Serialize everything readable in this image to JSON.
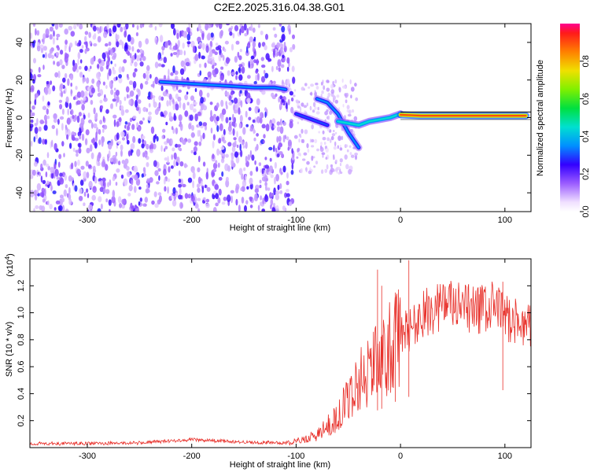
{
  "title": "C2E2.2025.316.04.38.G01",
  "colors": {
    "snr_line": "#e8302a",
    "trace_core_high": "#ff1a1a",
    "trace_mid": "#25e070",
    "noise": "#6a00e0"
  },
  "chart_data": [
    {
      "type": "heatmap",
      "xlabel": "Height of straight line (km)",
      "ylabel": "Frequency (Hz)",
      "xlim": [
        -355,
        125
      ],
      "ylim": [
        -50,
        50
      ],
      "xticks": [
        -300,
        -200,
        -100,
        0,
        100
      ],
      "yticks": [
        -40,
        -20,
        0,
        20,
        40
      ],
      "colorbar": {
        "label": "Normalized spectral amplitude",
        "range": [
          0,
          1
        ],
        "ticks": [
          "0.0",
          "0.2",
          "0.4",
          "0.6",
          "0.8"
        ]
      },
      "traces": [
        {
          "x": [
            -230,
            -200,
            -170,
            -140,
            -120,
            -110
          ],
          "y": [
            19,
            18,
            17,
            16,
            16,
            15
          ],
          "amp": 0.35
        },
        {
          "x": [
            -100,
            -95,
            -90,
            -85,
            -80,
            -75,
            -70
          ],
          "y": [
            2,
            1,
            0,
            -1,
            -2,
            -3,
            -4
          ],
          "amp": 0.3
        },
        {
          "x": [
            -80,
            -70,
            -60,
            -50,
            -45,
            -40
          ],
          "y": [
            10,
            8,
            2,
            -8,
            -12,
            -16
          ],
          "amp": 0.35
        },
        {
          "x": [
            -60,
            -50,
            -40,
            -30,
            -20,
            -10,
            0
          ],
          "y": [
            -2,
            -3,
            -4,
            -2,
            -1,
            0,
            2
          ],
          "amp": 0.45
        },
        {
          "x": [
            0,
            20,
            40,
            60,
            80,
            100,
            120
          ],
          "y": [
            1.5,
            1,
            1,
            1,
            1,
            1,
            1
          ],
          "amp": 0.9
        }
      ]
    },
    {
      "type": "line",
      "xlabel": "Height of straight line (km)",
      "ylabel": "SNR (10 * v/v)",
      "y_multiplier": "(x10^4)",
      "xlim": [
        -355,
        125
      ],
      "ylim": [
        0,
        14000
      ],
      "xticks": [
        -300,
        -200,
        -100,
        0,
        100
      ],
      "yticks": [
        0.2,
        0.4,
        0.6,
        0.8,
        1.0,
        1.2
      ],
      "series": [
        {
          "x": [
            -355,
            -300,
            -250,
            -200,
            -150,
            -110,
            -100,
            -80,
            -60,
            -50,
            -40,
            -30,
            -20,
            -10,
            0,
            10,
            20,
            30,
            40,
            50,
            60,
            70,
            80,
            90,
            100,
            110,
            125
          ],
          "y": [
            300,
            300,
            350,
            600,
            400,
            350,
            500,
            1000,
            2500,
            4000,
            5500,
            6500,
            7000,
            8000,
            9000,
            9500,
            10500,
            11000,
            11500,
            11300,
            11000,
            11000,
            11000,
            11200,
            10500,
            10000,
            9800
          ]
        }
      ]
    }
  ]
}
